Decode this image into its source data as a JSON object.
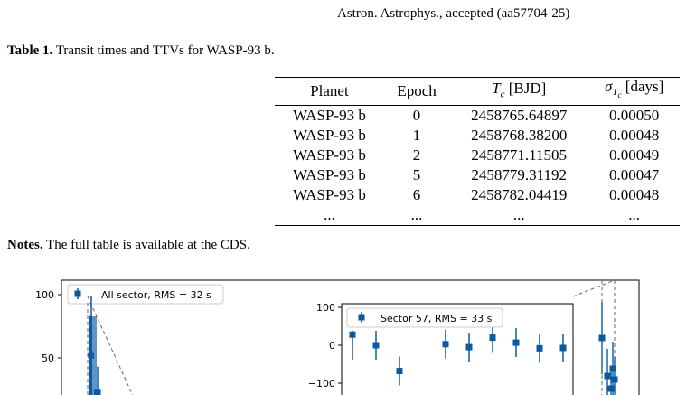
{
  "running_head": "Astron. Astrophys., accepted (aa57704-25)",
  "caption": {
    "label": "Table 1.",
    "text": " Transit times and TTVs for WASP-93 b."
  },
  "table": {
    "headers": [
      "Planet",
      "Epoch",
      "T_c [BJD]",
      "σ_Tc [days]"
    ],
    "rows": [
      [
        "WASP-93 b",
        "0",
        "2458765.64897",
        "0.00050"
      ],
      [
        "WASP-93 b",
        "1",
        "2458768.38200",
        "0.00048"
      ],
      [
        "WASP-93 b",
        "2",
        "2458771.11505",
        "0.00049"
      ],
      [
        "WASP-93 b",
        "5",
        "2458779.31192",
        "0.00047"
      ],
      [
        "WASP-93 b",
        "6",
        "2458782.04419",
        "0.00048"
      ],
      [
        "...",
        "...",
        "...",
        "..."
      ]
    ]
  },
  "notes": {
    "label": "Notes.",
    "text": " The full table is available at the CDS."
  },
  "chart_data": [
    {
      "type": "scatter",
      "legend": "All sector, RMS = 32 s",
      "yticks": [
        100,
        50
      ],
      "points": [
        {
          "y": 52,
          "err": 47
        },
        {
          "y": 23,
          "err": 20
        }
      ]
    },
    {
      "type": "scatter",
      "legend": "Sector 57, RMS = 33 s",
      "yticks": [
        100,
        0,
        -100
      ],
      "ytick_labels": [
        "100",
        "0",
        "−100"
      ],
      "ylim": [
        -100,
        100
      ],
      "points": [
        {
          "y": 0,
          "err": 38
        },
        {
          "y": -68,
          "err": 38
        },
        {
          "y": 3,
          "err": 38
        },
        {
          "y": -5,
          "err": 38
        },
        {
          "y": 20,
          "err": 38
        },
        {
          "y": 7,
          "err": 38
        },
        {
          "y": -8,
          "err": 38
        },
        {
          "y": -7,
          "err": 38
        }
      ]
    }
  ]
}
